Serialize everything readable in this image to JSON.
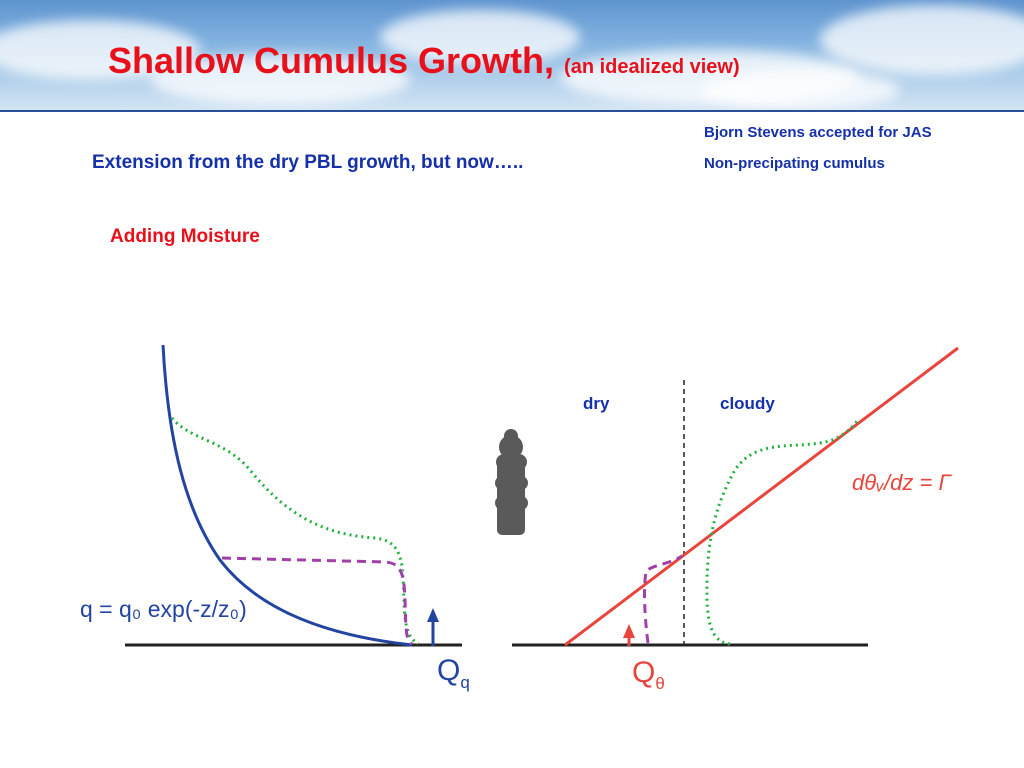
{
  "header": {
    "title": "Shallow Cumulus Growth,",
    "title_sub": "(an idealized view)"
  },
  "notes": {
    "reference": "Bjorn Stevens accepted for JAS",
    "type": "Non-precipating cumulus"
  },
  "subtitle": "Extension from the dry PBL growth, but now…..",
  "section_label": "Adding Moisture",
  "diagram": {
    "left": {
      "equation": "q = q₀ exp(-z/z₀)",
      "flux_label_main": "Q",
      "flux_label_sub": "q"
    },
    "right": {
      "dry_label": "dry",
      "cloudy_label": "cloudy",
      "lapse_label": "dθᵥ/dz = Γ",
      "flux_label_main": "Q",
      "flux_label_sub": "θ"
    },
    "colors": {
      "profile_blue": "#2344a0",
      "profile_red": "#e8453c",
      "dotted_green": "#22b03c",
      "dashed_purple": "#a040a8",
      "ground": "#222222",
      "cloud_gray": "#5a5a5a",
      "title_red": "#e8101a",
      "text_blue": "#1530a8"
    }
  }
}
